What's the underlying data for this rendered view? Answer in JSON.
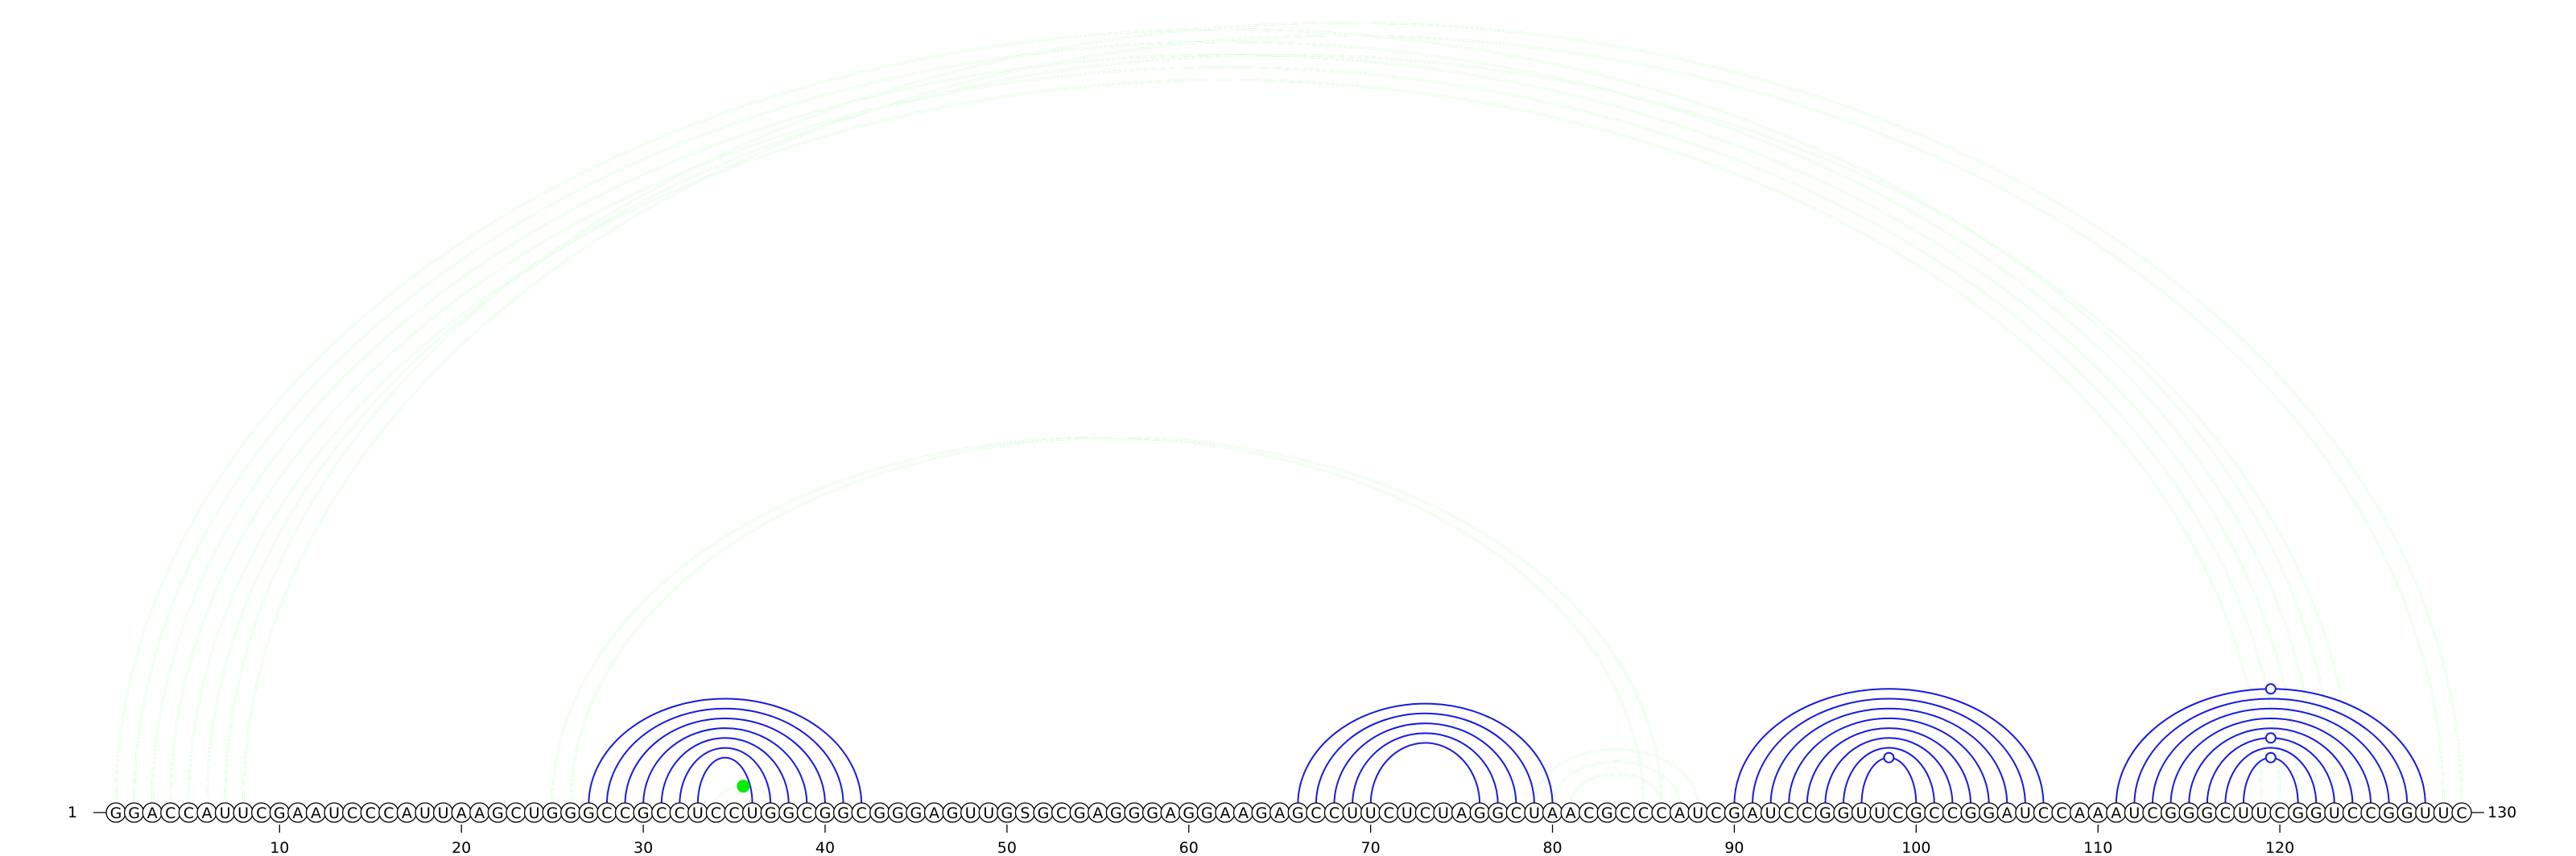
{
  "sequence": "GGACCAUUCGAAUCCCAUUAAGCUGGGCCGCCUCCUGGCGGCGGGAGUUGSGCGAGGGAGGAAGAGCCUUCUCUAGGCUAACGCCCAUCGAUCCGGUUCGCCGGAUCCAAAUCGGGCUUCGGUCCGGUUC",
  "start_label": "1",
  "end_label": "130",
  "ticks": [
    "10",
    "20",
    "30",
    "40",
    "50",
    "60",
    "70",
    "80",
    "90",
    "100",
    "110",
    "120"
  ],
  "colors": {
    "top_arcs": "#00ee00",
    "bottom_arcs": "#1a1adc"
  },
  "top_arcs": [
    {
      "i": 1,
      "j": 123,
      "w": 3
    },
    {
      "i": 2,
      "j": 122,
      "w": 3
    },
    {
      "i": 3,
      "j": 121,
      "w": 3
    },
    {
      "i": 4,
      "j": 120,
      "w": 3
    },
    {
      "i": 5,
      "j": 119,
      "w": 3
    },
    {
      "i": 6,
      "j": 124,
      "w": 3
    },
    {
      "i": 7,
      "j": 130,
      "w": 2
    },
    {
      "i": 8,
      "j": 129,
      "w": 2
    },
    {
      "i": 25,
      "j": 85,
      "w": 3
    },
    {
      "i": 26,
      "j": 86,
      "w": 3
    },
    {
      "i": 80,
      "j": 87,
      "w": 3
    },
    {
      "i": 81,
      "j": 86,
      "w": 3
    },
    {
      "i": 79,
      "j": 88,
      "w": 3
    },
    {
      "i": 34,
      "j": 37,
      "w": 2
    }
  ],
  "bottom_arcs": [
    {
      "i": 27,
      "j": 42
    },
    {
      "i": 28,
      "j": 41
    },
    {
      "i": 29,
      "j": 40
    },
    {
      "i": 30,
      "j": 39
    },
    {
      "i": 31,
      "j": 38
    },
    {
      "i": 32,
      "j": 37
    },
    {
      "i": 33,
      "j": 36
    },
    {
      "i": 66,
      "j": 80
    },
    {
      "i": 67,
      "j": 79
    },
    {
      "i": 68,
      "j": 78
    },
    {
      "i": 69,
      "j": 77
    },
    {
      "i": 70,
      "j": 76
    },
    {
      "i": 90,
      "j": 107
    },
    {
      "i": 91,
      "j": 106
    },
    {
      "i": 92,
      "j": 105
    },
    {
      "i": 93,
      "j": 104
    },
    {
      "i": 94,
      "j": 103
    },
    {
      "i": 95,
      "j": 102
    },
    {
      "i": 96,
      "j": 101
    },
    {
      "i": 97,
      "j": 100
    },
    {
      "i": 111,
      "j": 128
    },
    {
      "i": 112,
      "j": 127
    },
    {
      "i": 113,
      "j": 126
    },
    {
      "i": 114,
      "j": 125
    },
    {
      "i": 115,
      "j": 124
    },
    {
      "i": 116,
      "j": 123
    },
    {
      "i": 117,
      "j": 122
    },
    {
      "i": 118,
      "j": 121
    }
  ],
  "markers": [
    {
      "pos": 35.5,
      "arc_i": 34,
      "arc_j": 37,
      "layer": "top",
      "filled": true
    },
    {
      "pos": 65.5,
      "arc_i": 1,
      "arc_j": 130,
      "layer": "top",
      "filled": false
    },
    {
      "pos": 98.5,
      "arc_i": 97,
      "arc_j": 100,
      "layer": "bottom",
      "filled": false
    },
    {
      "pos": 119.5,
      "arc_i": 118,
      "arc_j": 121,
      "layer": "bottom",
      "filled": false
    },
    {
      "pos": 119.5,
      "arc_i": 116,
      "arc_j": 123,
      "layer": "bottom",
      "filled": false
    },
    {
      "pos": 119.5,
      "arc_i": 111,
      "arc_j": 128,
      "layer": "bottom",
      "filled": false
    }
  ]
}
